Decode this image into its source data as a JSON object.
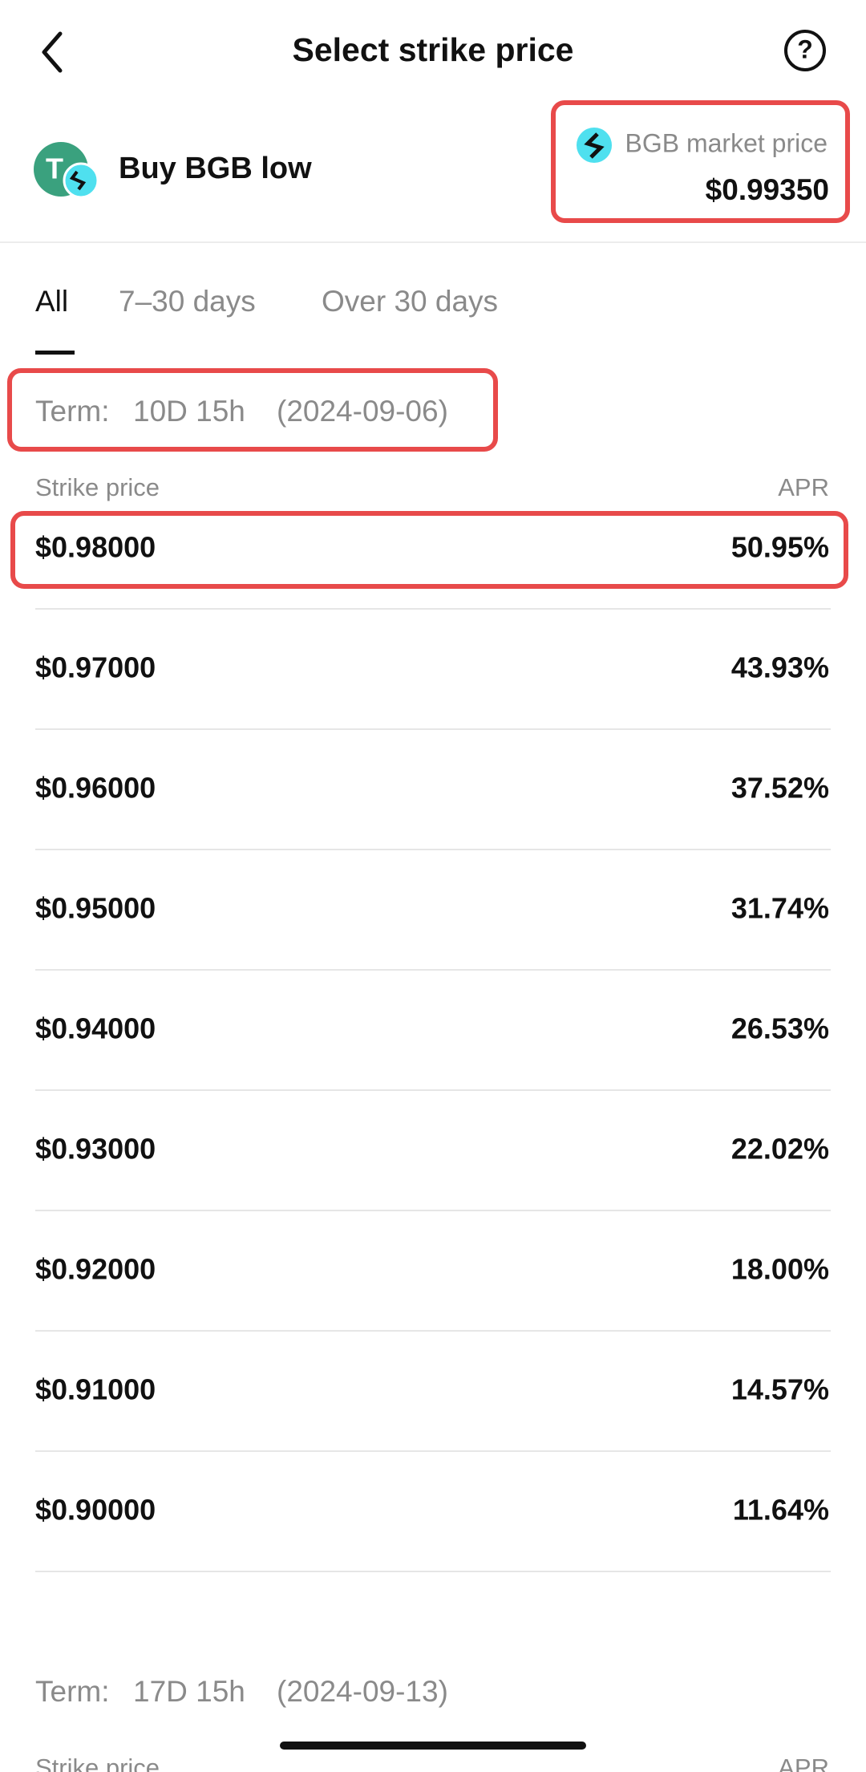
{
  "header": {
    "title": "Select strike price"
  },
  "product": {
    "name": "Buy BGB low",
    "market_price_label": "BGB market price",
    "market_price": "$0.99350"
  },
  "tabs": [
    "All",
    "7–30 days",
    "Over 30 days"
  ],
  "groups": [
    {
      "term_label": "Term:",
      "term_duration": "10D 15h",
      "term_date": "(2024-09-06)",
      "column_headers": [
        "Strike price",
        "APR"
      ],
      "rows": [
        [
          "$0.98000",
          "50.95%"
        ],
        [
          "$0.97000",
          "43.93%"
        ],
        [
          "$0.96000",
          "37.52%"
        ],
        [
          "$0.95000",
          "31.74%"
        ],
        [
          "$0.94000",
          "26.53%"
        ],
        [
          "$0.93000",
          "22.02%"
        ],
        [
          "$0.92000",
          "18.00%"
        ],
        [
          "$0.91000",
          "14.57%"
        ],
        [
          "$0.90000",
          "11.64%"
        ]
      ]
    },
    {
      "term_label": "Term:",
      "term_duration": "17D 15h",
      "term_date": "(2024-09-13)",
      "column_headers": [
        "Strike price",
        "APR"
      ],
      "rows": []
    }
  ]
}
